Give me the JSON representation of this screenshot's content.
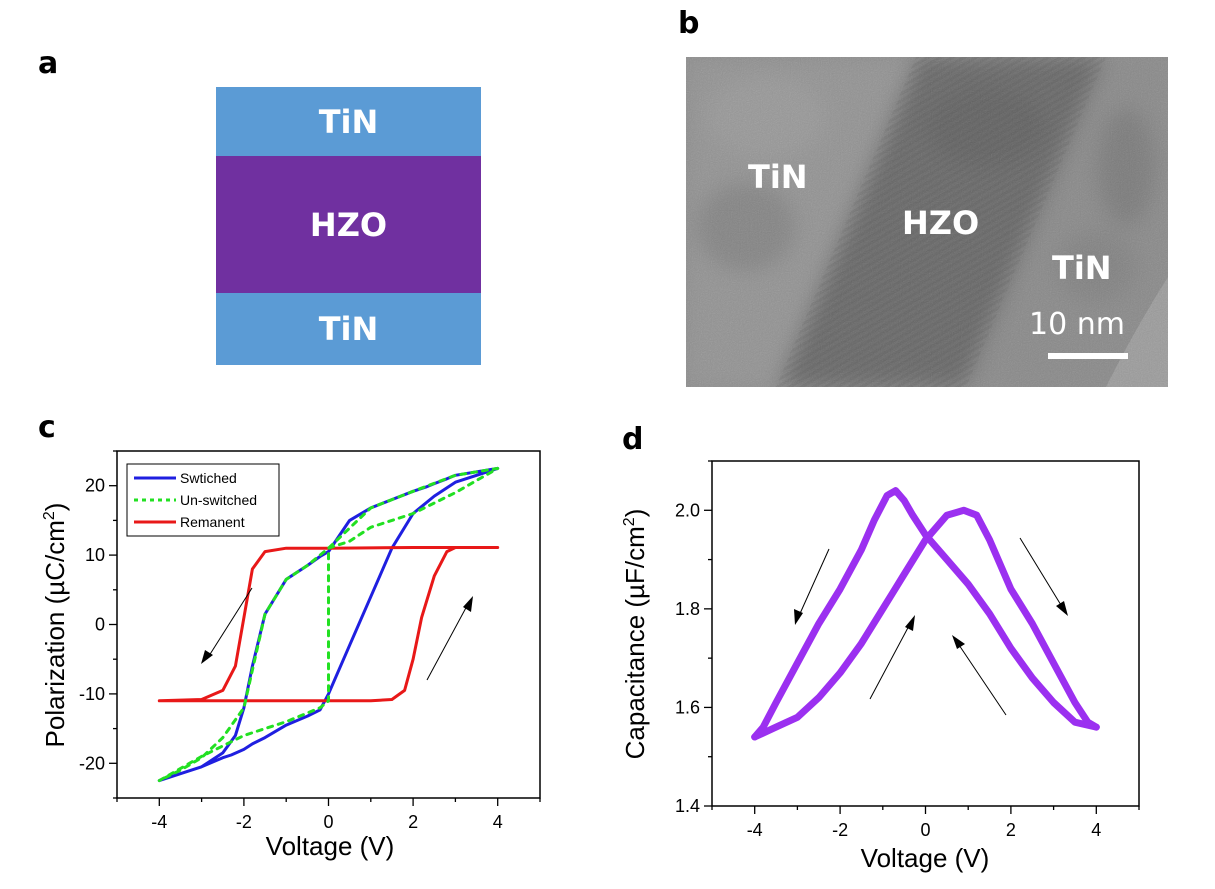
{
  "panels": {
    "a": {
      "letter": "a",
      "layers": [
        {
          "label": "TiN",
          "color": "#5b9bd5"
        },
        {
          "label": "HZO",
          "color": "#7030a0"
        },
        {
          "label": "TiN",
          "color": "#5b9bd5"
        }
      ]
    },
    "b": {
      "letter": "b",
      "labels": {
        "left": "TiN",
        "center": "HZO",
        "right": "TiN"
      },
      "scale_bar": "10 nm"
    },
    "c": {
      "letter": "c"
    },
    "d": {
      "letter": "d"
    }
  },
  "chart_data": [
    {
      "type": "line",
      "panel": "c",
      "xlabel": "Voltage (V)",
      "ylabel_main": "Polarization (µC/cm",
      "ylabel_sup": "2",
      "ylabel_end": ")",
      "xlim": [
        -5,
        5
      ],
      "ylim": [
        -25,
        25
      ],
      "xticks": [
        -4,
        -2,
        0,
        2,
        4
      ],
      "yticks": [
        -20,
        -10,
        0,
        10,
        20
      ],
      "legend_position": "top-left",
      "series": [
        {
          "name": "Swtiched",
          "color": "#1f1fe0",
          "dash": "solid",
          "x": [
            -4,
            -3.5,
            -3,
            -2.5,
            -2.2,
            -2,
            -1.8,
            -1.5,
            -1,
            -0.5,
            -0.2,
            0,
            0.5,
            1,
            1.5,
            2,
            2.3,
            2.5,
            2.8,
            3,
            3.5,
            4,
            3.5,
            3,
            2.5,
            2,
            1.5,
            1,
            0.5,
            0,
            -0.2,
            -0.5,
            -1,
            -1.5,
            -1.8,
            -2,
            -2.3,
            -2.5,
            -3,
            -3.5,
            -4
          ],
          "y": [
            -22.5,
            -21.5,
            -20.5,
            -18.5,
            -16,
            -12,
            -6,
            1.5,
            6.5,
            8.5,
            9.8,
            10.5,
            15,
            16.8,
            18,
            19.2,
            19.8,
            20.3,
            21,
            21.5,
            22,
            22.5,
            21.5,
            20.5,
            18.5,
            16,
            11,
            4,
            -3,
            -10,
            -12.3,
            -13.2,
            -14.5,
            -16.3,
            -17.2,
            -18,
            -18.8,
            -19.2,
            -20.5,
            -21.5,
            -22.5
          ]
        },
        {
          "name": "Un-switched",
          "color": "#22e022",
          "dash": "dotted",
          "x": [
            -4,
            -3,
            -2,
            -1,
            -0.2,
            0,
            0,
            0.5,
            1,
            2,
            3,
            4,
            3.5,
            3,
            2,
            1,
            0,
            -0.5,
            -1,
            -1.5,
            -2,
            -2.5,
            -3,
            -3.5,
            -4
          ],
          "y": [
            -22.5,
            -19,
            -16,
            -14,
            -12,
            -11,
            11,
            12,
            14,
            16,
            19,
            22.5,
            22,
            21.5,
            19.2,
            16.8,
            11,
            8.5,
            6.5,
            1.5,
            -12,
            -16.3,
            -19.2,
            -21,
            -22.5
          ],
          "note_vertical_segment_at": 0
        },
        {
          "name": "Remanent",
          "color": "#e81818",
          "dash": "solid",
          "x": [
            -4,
            -3,
            -2.5,
            -2.2,
            -2,
            -1.8,
            -1.5,
            -1,
            0,
            2,
            3,
            4,
            3,
            2.8,
            2.5,
            2.2,
            2,
            1.8,
            1.5,
            1,
            0,
            -2,
            -4
          ],
          "y": [
            -11,
            -10.8,
            -9.5,
            -6,
            1,
            8,
            10.5,
            11,
            11,
            11.1,
            11.1,
            11.1,
            11.1,
            10.5,
            7,
            1,
            -5,
            -9.5,
            -10.8,
            -11,
            -11,
            -11,
            -11
          ]
        }
      ]
    },
    {
      "type": "line",
      "panel": "d",
      "xlabel": "Voltage (V)",
      "ylabel_main": "Capacitance (µF/cm",
      "ylabel_sup": "2",
      "ylabel_end": ")",
      "xlim": [
        -5,
        5
      ],
      "ylim": [
        1.4,
        2.1
      ],
      "xticks": [
        -4,
        -2,
        0,
        2,
        4
      ],
      "yticks": [
        1.4,
        1.6,
        1.8,
        2.0
      ],
      "ytick_labels": [
        "1.4",
        "1.6",
        "1.8",
        "2.0"
      ],
      "series": [
        {
          "color": "#9b30f0",
          "x": [
            4,
            3.5,
            3,
            2.5,
            2,
            1.5,
            1,
            0.5,
            0,
            -0.3,
            -0.5,
            -0.7,
            -0.9,
            -1.2,
            -1.5,
            -2,
            -2.5,
            -3,
            -3.5,
            -3.8,
            -4
          ],
          "y": [
            1.56,
            1.57,
            1.61,
            1.66,
            1.72,
            1.79,
            1.85,
            1.9,
            1.95,
            1.99,
            2.02,
            2.04,
            2.03,
            1.98,
            1.92,
            1.84,
            1.77,
            1.69,
            1.61,
            1.56,
            1.54
          ]
        },
        {
          "color": "#9b30f0",
          "x": [
            -4,
            -3.5,
            -3,
            -2.5,
            -2,
            -1.5,
            -1,
            -0.5,
            0,
            0.5,
            0.9,
            1.2,
            1.5,
            2,
            2.5,
            3,
            3.5,
            3.8,
            4
          ],
          "y": [
            1.54,
            1.56,
            1.58,
            1.62,
            1.67,
            1.73,
            1.8,
            1.87,
            1.94,
            1.99,
            2.0,
            1.99,
            1.94,
            1.84,
            1.77,
            1.69,
            1.61,
            1.57,
            1.56
          ]
        }
      ]
    }
  ]
}
